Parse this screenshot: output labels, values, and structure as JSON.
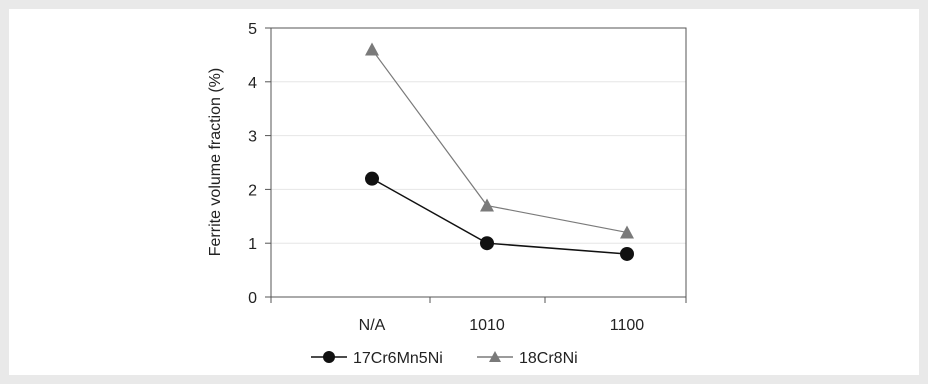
{
  "chart_data": {
    "type": "line",
    "categories": [
      "N/A",
      "1010",
      "1100"
    ],
    "series": [
      {
        "name": "17Cr6Mn5Ni",
        "values": [
          2.2,
          1.0,
          0.8
        ],
        "marker": "circle",
        "color": "#111111"
      },
      {
        "name": "18Cr8Ni",
        "values": [
          4.6,
          1.7,
          1.2
        ],
        "marker": "triangle",
        "color": "#7a7a7a"
      }
    ],
    "title": "",
    "xlabel": "",
    "ylabel": "Ferrite volume  fraction (%)",
    "ylim": [
      0,
      5
    ],
    "yticks": [
      "0",
      "1",
      "2",
      "3",
      "4",
      "5"
    ],
    "grid": true,
    "legend_position": "bottom"
  }
}
